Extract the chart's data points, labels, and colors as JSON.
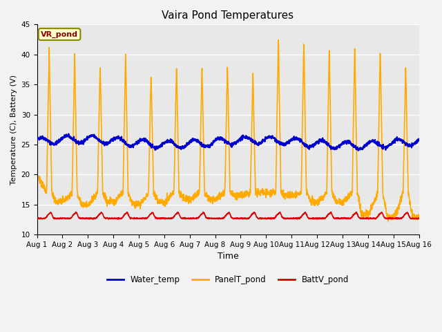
{
  "title": "Vaira Pond Temperatures",
  "xlabel": "Time",
  "ylabel": "Temperature (C), Battery (V)",
  "ylim": [
    10,
    45
  ],
  "yticks": [
    10,
    15,
    20,
    25,
    30,
    35,
    40,
    45
  ],
  "xlim": [
    0,
    15
  ],
  "xtick_labels": [
    "Aug 1",
    "Aug 2",
    "Aug 3",
    "Aug 4",
    "Aug 5",
    "Aug 6",
    "Aug 7",
    "Aug 8",
    "Aug 9",
    "Aug 10",
    "Aug 11",
    "Aug 12",
    "Aug 13",
    "Aug 14",
    "Aug 15",
    "Aug 16"
  ],
  "station_label": "VR_pond",
  "water_color": "#0000cc",
  "panel_color": "#ffaa00",
  "batt_color": "#dd0000",
  "bg_color": "#f2f2f2",
  "plot_bg": "#e8e8e8",
  "grid_color": "#ffffff",
  "legend_labels": [
    "Water_temp",
    "PanelT_pond",
    "BattV_pond"
  ],
  "peaks": [
    41,
    40,
    38.5,
    40.5,
    37,
    38.5,
    38,
    38.5,
    37,
    43.5,
    42.5,
    41.5,
    41.5,
    41,
    38
  ],
  "night_mins": [
    19.5,
    15.5,
    15.0,
    15.5,
    15.0,
    15.5,
    16,
    16,
    16.5,
    17,
    16.5,
    15.5,
    15.5,
    13.5,
    13.0
  ]
}
